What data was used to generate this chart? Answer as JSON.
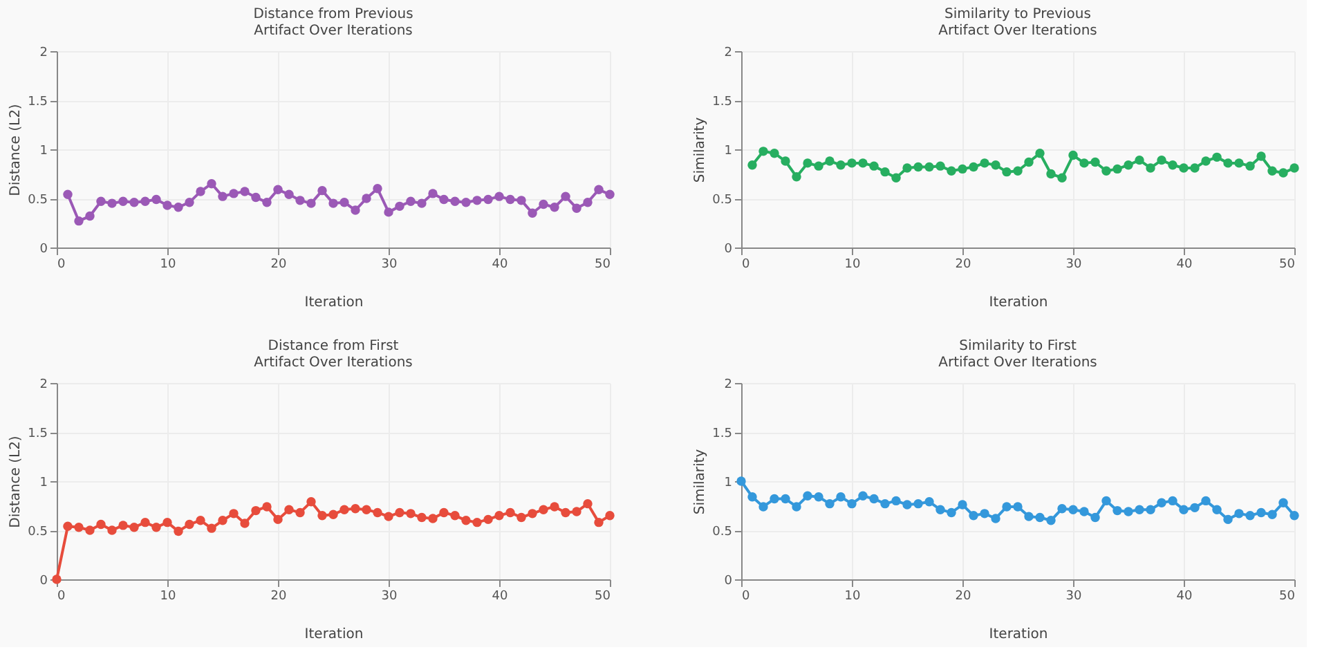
{
  "chart_data": [
    {
      "type": "line",
      "title": "Distance from Previous\nArtifact Over Iterations",
      "xlabel": "Iteration",
      "ylabel": "Distance (L2)",
      "xlim": [
        0,
        50
      ],
      "xticks": [
        0,
        10,
        20,
        30,
        40,
        50
      ],
      "ylim": [
        0,
        2
      ],
      "yticks": [
        0,
        0.5,
        1,
        1.5,
        2
      ],
      "grid": true,
      "marker": "circle",
      "line_style": "solid",
      "x": [
        1,
        2,
        3,
        4,
        5,
        6,
        7,
        8,
        9,
        10,
        11,
        12,
        13,
        14,
        15,
        16,
        17,
        18,
        19,
        20,
        21,
        22,
        23,
        24,
        25,
        26,
        27,
        28,
        29,
        30,
        31,
        32,
        33,
        34,
        35,
        36,
        37,
        38,
        39,
        40,
        41,
        42,
        43,
        44,
        45,
        46,
        47,
        48,
        49,
        50
      ],
      "series": [
        {
          "color": "#9b59b6",
          "values": [
            0.54,
            0.27,
            0.32,
            0.47,
            0.45,
            0.47,
            0.46,
            0.47,
            0.49,
            0.43,
            0.41,
            0.46,
            0.57,
            0.65,
            0.52,
            0.55,
            0.57,
            0.51,
            0.46,
            0.59,
            0.54,
            0.48,
            0.45,
            0.58,
            0.45,
            0.46,
            0.38,
            0.5,
            0.6,
            0.36,
            0.42,
            0.47,
            0.45,
            0.55,
            0.49,
            0.47,
            0.46,
            0.48,
            0.49,
            0.52,
            0.49,
            0.48,
            0.35,
            0.44,
            0.41,
            0.52,
            0.4,
            0.46,
            0.59,
            0.54
          ]
        }
      ]
    },
    {
      "type": "line",
      "title": "Similarity to Previous\nArtifact Over Iterations",
      "xlabel": "Iteration",
      "ylabel": "Similarity",
      "xlim": [
        0,
        50
      ],
      "xticks": [
        0,
        10,
        20,
        30,
        40,
        50
      ],
      "ylim": [
        0,
        2
      ],
      "yticks": [
        0,
        0.5,
        1,
        1.5,
        2
      ],
      "grid": true,
      "marker": "circle",
      "line_style": "solid",
      "x": [
        1,
        2,
        3,
        4,
        5,
        6,
        7,
        8,
        9,
        10,
        11,
        12,
        13,
        14,
        15,
        16,
        17,
        18,
        19,
        20,
        21,
        22,
        23,
        24,
        25,
        26,
        27,
        28,
        29,
        30,
        31,
        32,
        33,
        34,
        35,
        36,
        37,
        38,
        39,
        40,
        41,
        42,
        43,
        44,
        45,
        46,
        47,
        48,
        49,
        50
      ],
      "series": [
        {
          "color": "#27ae60",
          "values": [
            0.84,
            0.98,
            0.96,
            0.88,
            0.72,
            0.86,
            0.83,
            0.88,
            0.84,
            0.86,
            0.86,
            0.83,
            0.77,
            0.71,
            0.81,
            0.82,
            0.82,
            0.83,
            0.78,
            0.8,
            0.82,
            0.86,
            0.84,
            0.77,
            0.78,
            0.87,
            0.96,
            0.75,
            0.71,
            0.94,
            0.86,
            0.87,
            0.78,
            0.8,
            0.84,
            0.89,
            0.81,
            0.89,
            0.84,
            0.81,
            0.81,
            0.88,
            0.92,
            0.86,
            0.86,
            0.83,
            0.93,
            0.78,
            0.76,
            0.81
          ]
        }
      ]
    },
    {
      "type": "line",
      "title": "Distance from First\nArtifact Over Iterations",
      "xlabel": "Iteration",
      "ylabel": "Distance (L2)",
      "xlim": [
        0,
        50
      ],
      "xticks": [
        0,
        10,
        20,
        30,
        40,
        50
      ],
      "ylim": [
        0,
        2
      ],
      "yticks": [
        0,
        0.5,
        1,
        1.5,
        2
      ],
      "grid": true,
      "marker": "circle",
      "line_style": "solid",
      "x": [
        0,
        1,
        2,
        3,
        4,
        5,
        6,
        7,
        8,
        9,
        10,
        11,
        12,
        13,
        14,
        15,
        16,
        17,
        18,
        19,
        20,
        21,
        22,
        23,
        24,
        25,
        26,
        27,
        28,
        29,
        30,
        31,
        32,
        33,
        34,
        35,
        36,
        37,
        38,
        39,
        40,
        41,
        42,
        43,
        44,
        45,
        46,
        47,
        48,
        49,
        50
      ],
      "series": [
        {
          "color": "#e74c3c",
          "values": [
            0,
            0.54,
            0.53,
            0.5,
            0.56,
            0.5,
            0.55,
            0.53,
            0.58,
            0.53,
            0.58,
            0.49,
            0.56,
            0.6,
            0.52,
            0.6,
            0.67,
            0.57,
            0.7,
            0.74,
            0.61,
            0.71,
            0.68,
            0.79,
            0.65,
            0.66,
            0.71,
            0.72,
            0.71,
            0.68,
            0.64,
            0.68,
            0.67,
            0.63,
            0.62,
            0.68,
            0.65,
            0.6,
            0.58,
            0.61,
            0.65,
            0.68,
            0.63,
            0.67,
            0.71,
            0.74,
            0.68,
            0.69,
            0.77,
            0.58,
            0.65
          ]
        }
      ]
    },
    {
      "type": "line",
      "title": "Similarity to First\nArtifact Over Iterations",
      "xlabel": "Iteration",
      "ylabel": "Similarity",
      "xlim": [
        0,
        50
      ],
      "xticks": [
        0,
        10,
        20,
        30,
        40,
        50
      ],
      "ylim": [
        0,
        2
      ],
      "yticks": [
        0,
        0.5,
        1,
        1.5,
        2
      ],
      "grid": true,
      "marker": "circle",
      "line_style": "solid",
      "x": [
        0,
        1,
        2,
        3,
        4,
        5,
        6,
        7,
        8,
        9,
        10,
        11,
        12,
        13,
        14,
        15,
        16,
        17,
        18,
        19,
        20,
        21,
        22,
        23,
        24,
        25,
        26,
        27,
        28,
        29,
        30,
        31,
        32,
        33,
        34,
        35,
        36,
        37,
        38,
        39,
        40,
        41,
        42,
        43,
        44,
        45,
        46,
        47,
        48,
        49,
        50
      ],
      "series": [
        {
          "color": "#3498db",
          "values": [
            1.0,
            0.84,
            0.74,
            0.82,
            0.82,
            0.74,
            0.85,
            0.84,
            0.77,
            0.84,
            0.77,
            0.85,
            0.82,
            0.77,
            0.8,
            0.76,
            0.77,
            0.79,
            0.71,
            0.68,
            0.76,
            0.65,
            0.67,
            0.62,
            0.74,
            0.74,
            0.64,
            0.63,
            0.6,
            0.72,
            0.71,
            0.69,
            0.63,
            0.8,
            0.7,
            0.69,
            0.71,
            0.71,
            0.78,
            0.8,
            0.71,
            0.73,
            0.8,
            0.71,
            0.61,
            0.67,
            0.65,
            0.68,
            0.66,
            0.78,
            0.65
          ]
        }
      ]
    }
  ]
}
